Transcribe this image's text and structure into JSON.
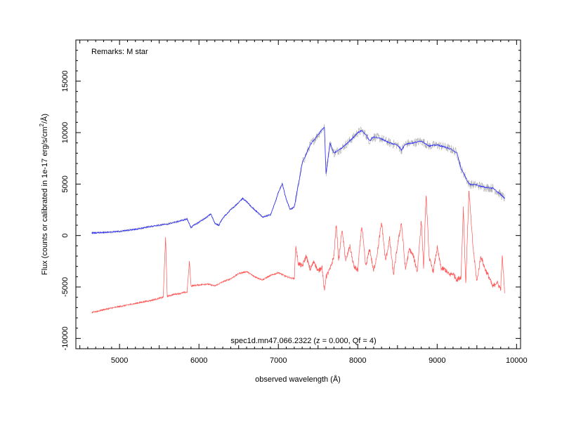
{
  "chart_data": {
    "type": "line",
    "xlabel": "observed wavelength (Å)",
    "ylabel_main": "Flux (counts or calibrated in 1e-17 erg/s/cm",
    "ylabel_sup": "2",
    "ylabel_end": "/Å)",
    "remarks": "Remarks: M star",
    "footer": "spec1d.mn47.066.2322 (z = 0.000, Qf = 4)",
    "xlim": [
      4450,
      10050
    ],
    "ylim": [
      -11000,
      19000
    ],
    "x_ticks": [
      5000,
      6000,
      7000,
      8000,
      9000,
      10000
    ],
    "y_ticks": [
      -10000,
      -5000,
      0,
      5000,
      10000,
      15000
    ],
    "grid": false,
    "colors": {
      "smoothed": "#2a2aff",
      "raw": "#b0b0b0",
      "error": "#ff5555"
    },
    "series": [
      {
        "x": [
          4650,
          4800,
          5000,
          5200,
          5400,
          5600,
          5750,
          5850,
          5900,
          6000,
          6100,
          6150,
          6200,
          6250,
          6300,
          6400,
          6500,
          6550,
          6600,
          6700,
          6800,
          6900,
          6950,
          7000,
          7050,
          7100,
          7150,
          7200,
          7230,
          7300,
          7400,
          7500,
          7550,
          7580,
          7600,
          7650,
          7700,
          7800,
          7900,
          8000,
          8050,
          8100,
          8150,
          8200,
          8300,
          8400,
          8500,
          8550,
          8600,
          8700,
          8800,
          8900,
          9000,
          9100,
          9200,
          9250,
          9300,
          9350,
          9400,
          9500,
          9600,
          9700,
          9800,
          9850
        ],
        "values": [
          250,
          300,
          400,
          600,
          900,
          1100,
          1400,
          1600,
          800,
          1300,
          1800,
          2100,
          1200,
          1000,
          1700,
          2500,
          3200,
          3600,
          3300,
          2500,
          1800,
          2000,
          3000,
          4200,
          5000,
          3500,
          2500,
          2800,
          4000,
          7000,
          8800,
          9800,
          10300,
          10500,
          6000,
          9000,
          8000,
          8500,
          9200,
          10000,
          10200,
          9800,
          9200,
          9600,
          9400,
          9000,
          8800,
          8300,
          8900,
          9000,
          9200,
          8700,
          8800,
          8600,
          8300,
          8000,
          6500,
          5800,
          5000,
          4900,
          4700,
          4600,
          4000,
          3600
        ]
      },
      {
        "x": [
          4650,
          4800,
          5000,
          5200,
          5400,
          5550,
          5580,
          5600,
          5700,
          5850,
          5880,
          5900,
          6000,
          6100,
          6200,
          6300,
          6400,
          6500,
          6600,
          6700,
          6800,
          6900,
          7000,
          7100,
          7200,
          7220,
          7250,
          7300,
          7350,
          7400,
          7450,
          7500,
          7550,
          7580,
          7600,
          7650,
          7700,
          7730,
          7760,
          7800,
          7850,
          7900,
          7950,
          8000,
          8050,
          8100,
          8150,
          8200,
          8250,
          8300,
          8350,
          8400,
          8450,
          8500,
          8550,
          8600,
          8650,
          8700,
          8750,
          8800,
          8830,
          8860,
          8900,
          8950,
          9000,
          9050,
          9100,
          9150,
          9200,
          9250,
          9300,
          9330,
          9360,
          9400,
          9450,
          9500,
          9550,
          9600,
          9650,
          9700,
          9750,
          9800,
          9820,
          9850
        ],
        "values": [
          -7500,
          -7200,
          -6900,
          -6600,
          -6300,
          -6000,
          -100,
          -5900,
          -5700,
          -5500,
          -2500,
          -4900,
          -4800,
          -4700,
          -4900,
          -4500,
          -4200,
          -3700,
          -3500,
          -4000,
          -4300,
          -3900,
          -3600,
          -4000,
          -4200,
          -1000,
          -2700,
          -3000,
          -2000,
          -3300,
          -2500,
          -3500,
          -3000,
          -5500,
          -4000,
          -3300,
          -2000,
          1200,
          -2500,
          600,
          -2500,
          -1000,
          -3000,
          -3400,
          1000,
          -3000,
          -1300,
          -3500,
          -1500,
          1300,
          -2500,
          -300,
          -3800,
          -1000,
          1300,
          -3300,
          -1300,
          -2000,
          -3500,
          1500,
          -3200,
          4100,
          -2200,
          -3500,
          -1200,
          -3200,
          -3300,
          -3800,
          -3700,
          -4300,
          -4000,
          2700,
          -4800,
          4400,
          -1000,
          -4500,
          -2000,
          -3200,
          -4000,
          -5000,
          -4500,
          -5200,
          -2000,
          -5500
        ]
      }
    ]
  }
}
